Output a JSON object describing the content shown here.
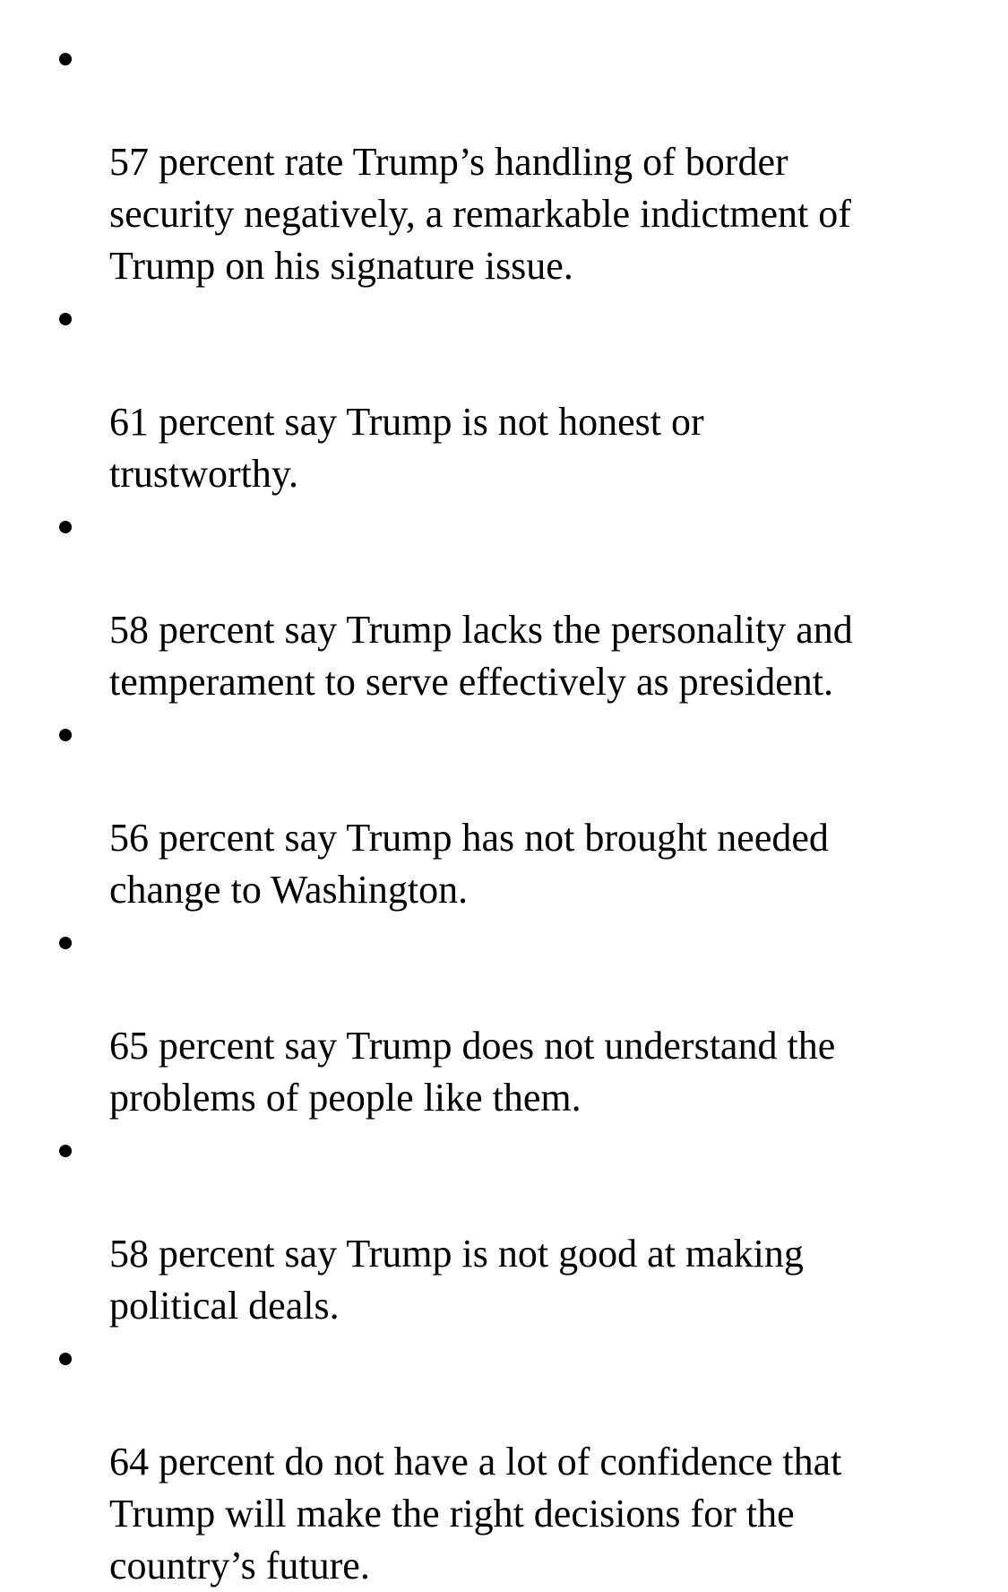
{
  "bullets": [
    "57 percent rate Trump’s handling of border\nsecurity negatively, a remarkable indictment of\nTrump on his signature issue.",
    "61 percent say Trump is not honest or\ntrustworthy.",
    "58 percent say Trump lacks the personality and\ntemperament to serve effectively as president.",
    "56 percent say Trump has not brought needed\nchange to Washington.",
    "65 percent say Trump does not understand the\nproblems of people like them.",
    "58 percent say Trump is not good at making\npolitical deals.",
    "64 percent do not have a lot of confidence that\nTrump will make the right decisions for the\ncountry’s future."
  ]
}
